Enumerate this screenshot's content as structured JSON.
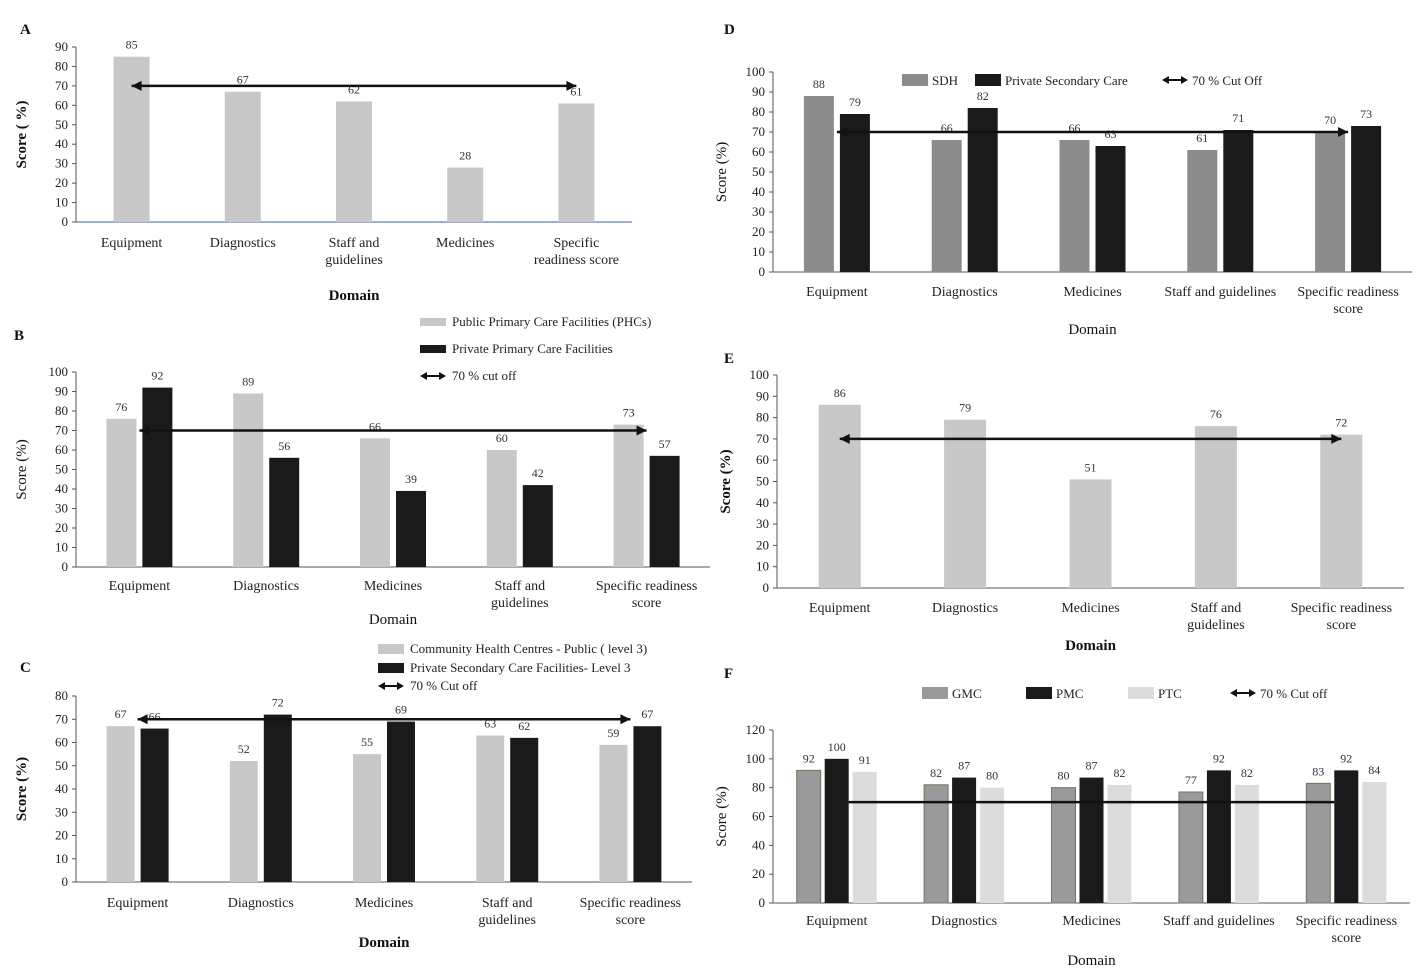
{
  "chart_data": [
    {
      "panel": "A",
      "type": "bar",
      "categories": [
        [
          "Equipment"
        ],
        [
          "Diagnostics"
        ],
        [
          "Staff and",
          "guidelines"
        ],
        [
          "Medicines"
        ],
        [
          "Specific",
          "readiness score"
        ]
      ],
      "series": [
        {
          "values": [
            85,
            67,
            62,
            28,
            61
          ],
          "color": "#c8c8c8"
        }
      ],
      "cutoff": 70,
      "xlabel": "Domain",
      "ylabel": "Score ( %)",
      "ylim": [
        0,
        90
      ],
      "yticks": [
        0,
        10,
        20,
        30,
        40,
        50,
        60,
        70,
        80,
        90
      ],
      "legend": []
    },
    {
      "panel": "B",
      "type": "bar",
      "categories": [
        [
          "Equipment"
        ],
        [
          "Diagnostics"
        ],
        [
          "Medicines"
        ],
        [
          "Staff and",
          "guidelines"
        ],
        [
          "Specific readiness",
          "score"
        ]
      ],
      "series": [
        {
          "name": "Public Primary Care Facilities (PHCs)",
          "values": [
            76,
            89,
            66,
            60,
            73
          ],
          "color": "#c8c8c8"
        },
        {
          "name": "Private Primary Care Facilities",
          "values": [
            92,
            56,
            39,
            42,
            57
          ],
          "color": "#1a1a1a"
        }
      ],
      "cutoff": 70,
      "cutoff_label": "70 % cut off",
      "xlabel": "Domain",
      "ylabel": "Score (%)",
      "ylim": [
        0,
        100
      ],
      "yticks": [
        0,
        10,
        20,
        30,
        40,
        50,
        60,
        70,
        80,
        90,
        100
      ]
    },
    {
      "panel": "C",
      "type": "bar",
      "categories": [
        [
          "Equipment"
        ],
        [
          "Diagnostics"
        ],
        [
          "Medicines"
        ],
        [
          "Staff and",
          "guidelines"
        ],
        [
          "Specific readiness",
          "score"
        ]
      ],
      "series": [
        {
          "name": "Community Health Centres - Public ( level 3)",
          "values": [
            67,
            52,
            55,
            63,
            59
          ],
          "color": "#c8c8c8"
        },
        {
          "name": "Private Secondary Care Facilities- Level 3",
          "values": [
            66,
            72,
            69,
            62,
            67
          ],
          "color": "#1a1a1a"
        }
      ],
      "cutoff": 70,
      "cutoff_label": "70 % Cut off",
      "xlabel": "Domain",
      "ylabel": "Score (%)",
      "ylim": [
        0,
        80
      ],
      "yticks": [
        0,
        10,
        20,
        30,
        40,
        50,
        60,
        70,
        80
      ]
    },
    {
      "panel": "D",
      "type": "bar",
      "categories": [
        [
          "Equipment"
        ],
        [
          "Diagnostics"
        ],
        [
          "Medicines"
        ],
        [
          "Staff and guidelines"
        ],
        [
          "Specific readiness",
          "score"
        ]
      ],
      "series": [
        {
          "name": "SDH",
          "values": [
            88,
            66,
            66,
            61,
            70
          ],
          "color": "#8c8c8c"
        },
        {
          "name": "Private Secondary  Care",
          "values": [
            79,
            82,
            63,
            71,
            73
          ],
          "color": "#1a1a1a"
        }
      ],
      "cutoff": 70,
      "cutoff_label": "70 % Cut Off",
      "xlabel": "Domain",
      "ylabel": "Score (%)",
      "ylim": [
        0,
        100
      ],
      "yticks": [
        0,
        10,
        20,
        30,
        40,
        50,
        60,
        70,
        80,
        90,
        100
      ]
    },
    {
      "panel": "E",
      "type": "bar",
      "categories": [
        [
          "Equipment"
        ],
        [
          "Diagnostics"
        ],
        [
          "Medicines"
        ],
        [
          "Staff and",
          "guidelines"
        ],
        [
          "Specific readiness",
          "score"
        ]
      ],
      "series": [
        {
          "values": [
            86,
            79,
            51,
            76,
            72
          ],
          "color": "#c8c8c8"
        }
      ],
      "cutoff": 70,
      "xlabel": "Domain",
      "ylabel": "Score (%)",
      "ylim": [
        0,
        100
      ],
      "yticks": [
        0,
        10,
        20,
        30,
        40,
        50,
        60,
        70,
        80,
        90,
        100
      ],
      "legend": []
    },
    {
      "panel": "F",
      "type": "bar",
      "categories": [
        [
          "Equipment"
        ],
        [
          "Diagnostics"
        ],
        [
          "Medicines"
        ],
        [
          "Staff and guidelines"
        ],
        [
          "Specific readiness",
          "score"
        ]
      ],
      "series": [
        {
          "name": "GMC",
          "values": [
            92,
            82,
            80,
            77,
            83
          ],
          "color": "#9a9a9a"
        },
        {
          "name": "PMC",
          "values": [
            100,
            87,
            87,
            92,
            92
          ],
          "color": "#1a1a1a"
        },
        {
          "name": "PTC",
          "values": [
            91,
            80,
            82,
            82,
            84
          ],
          "color": "#dcdcdc"
        }
      ],
      "cutoff": 70,
      "cutoff_label": "70 % Cut off",
      "xlabel": "Domain",
      "ylabel": "Score (%)",
      "ylim": [
        0,
        120
      ],
      "yticks": [
        0,
        20,
        40,
        60,
        80,
        100,
        120
      ]
    }
  ]
}
